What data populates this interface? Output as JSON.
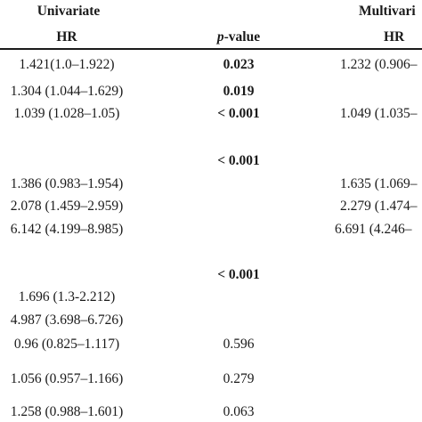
{
  "header": {
    "univariate": "Univariate",
    "multivariate": "Multivari",
    "hr": "HR",
    "p_italic": "p",
    "p_rest": "-value",
    "hr2": "HR"
  },
  "rows": [
    {
      "uni_hr": "1.421(1.0–1.922)",
      "p": "0.023",
      "multi_hr": "1.232 (0.906–"
    },
    {
      "uni_hr": "1.304 (1.044–1.629)",
      "p": "0.019",
      "multi_hr": ""
    },
    {
      "uni_hr": "1.039 (1.028–1.05)",
      "p": "< 0.001",
      "multi_hr": "1.049 (1.035–"
    },
    {
      "uni_hr": "",
      "p": "< 0.001",
      "multi_hr": ""
    },
    {
      "uni_hr": "1.386 (0.983–1.954)",
      "p": "",
      "multi_hr": "1.635 (1.069–"
    },
    {
      "uni_hr": "2.078 (1.459–2.959)",
      "p": "",
      "multi_hr": "2.279 (1.474–"
    },
    {
      "uni_hr": "6.142 (4.199–8.985)",
      "p": "",
      "multi_hr": "6.691 (4.246–"
    },
    {
      "uni_hr": "",
      "p": "< 0.001",
      "multi_hr": ""
    },
    {
      "uni_hr": "1.696 (1.3-2.212)",
      "p": "",
      "multi_hr": ""
    },
    {
      "uni_hr": "4.987 (3.698–6.726)",
      "p": "",
      "multi_hr": ""
    },
    {
      "uni_hr": "0.96 (0.825–1.117)",
      "p": "0.596",
      "multi_hr": ""
    },
    {
      "uni_hr": "1.056 (0.957–1.166)",
      "p": "0.279",
      "multi_hr": ""
    },
    {
      "uni_hr": "1.258 (0.988–1.601)",
      "p": "0.063",
      "multi_hr": ""
    }
  ]
}
